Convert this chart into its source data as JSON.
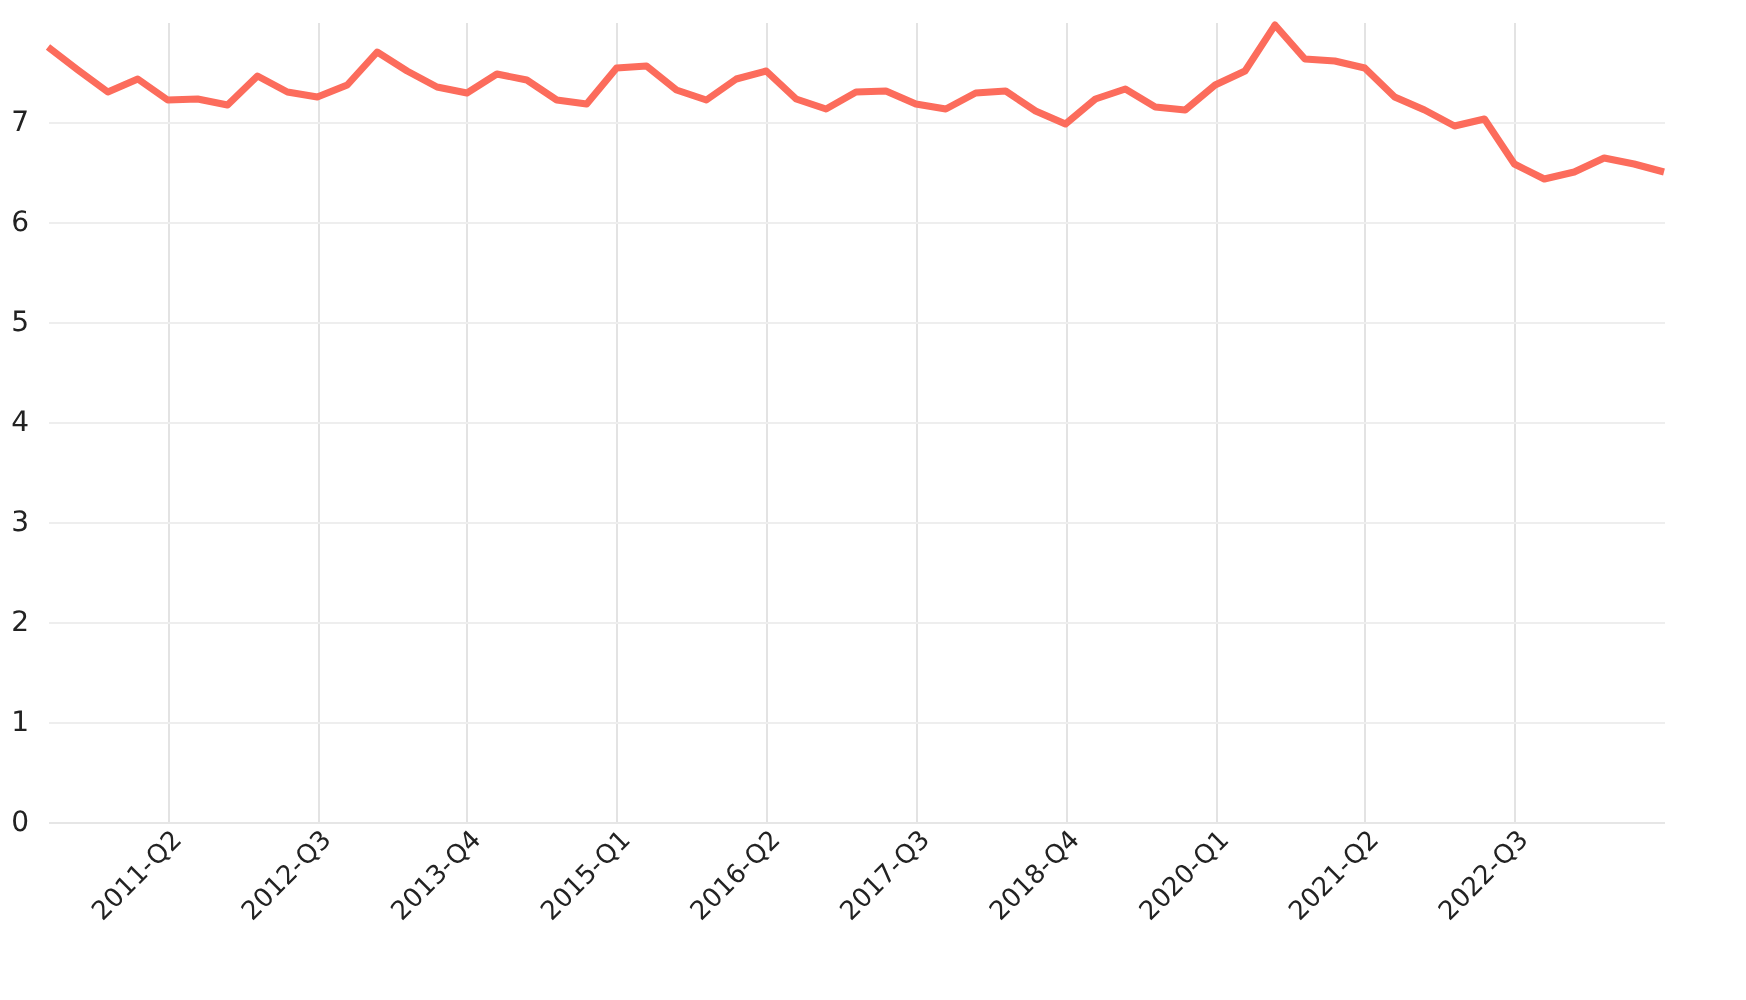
{
  "chart_data": {
    "type": "line",
    "categories": [
      null,
      null,
      null,
      null,
      "2011-Q2",
      null,
      null,
      null,
      null,
      "2012-Q3",
      null,
      null,
      null,
      null,
      "2013-Q4",
      null,
      null,
      null,
      null,
      "2015-Q1",
      null,
      null,
      null,
      null,
      "2016-Q2",
      null,
      null,
      null,
      null,
      "2017-Q3",
      null,
      null,
      null,
      null,
      "2018-Q4",
      null,
      null,
      null,
      null,
      "2020-Q1",
      null,
      null,
      null,
      null,
      "2021-Q2",
      null,
      null,
      null,
      null,
      "2022-Q3",
      null,
      null,
      null,
      null,
      null
    ],
    "series": [
      {
        "color": "#fc6c5c",
        "values": [
          7.75,
          7.52,
          7.3,
          7.43,
          7.22,
          7.23,
          7.17,
          7.46,
          7.3,
          7.25,
          7.37,
          7.7,
          7.51,
          7.35,
          7.29,
          7.48,
          7.42,
          7.22,
          7.18,
          7.54,
          7.56,
          7.32,
          7.22,
          7.43,
          7.51,
          7.23,
          7.13,
          7.3,
          7.31,
          7.18,
          7.13,
          7.29,
          7.31,
          7.11,
          6.98,
          7.23,
          7.33,
          7.15,
          7.12,
          7.37,
          7.51,
          7.97,
          7.63,
          7.61,
          7.54,
          7.25,
          7.12,
          6.96,
          7.03,
          6.58,
          6.43,
          6.5,
          6.64,
          6.58,
          6.5
        ]
      }
    ],
    "ylim": [
      0,
      8
    ],
    "yticks": [
      0,
      1,
      2,
      3,
      4,
      5,
      6,
      7
    ],
    "grid": true,
    "marker": "none",
    "line_style": "solid"
  }
}
